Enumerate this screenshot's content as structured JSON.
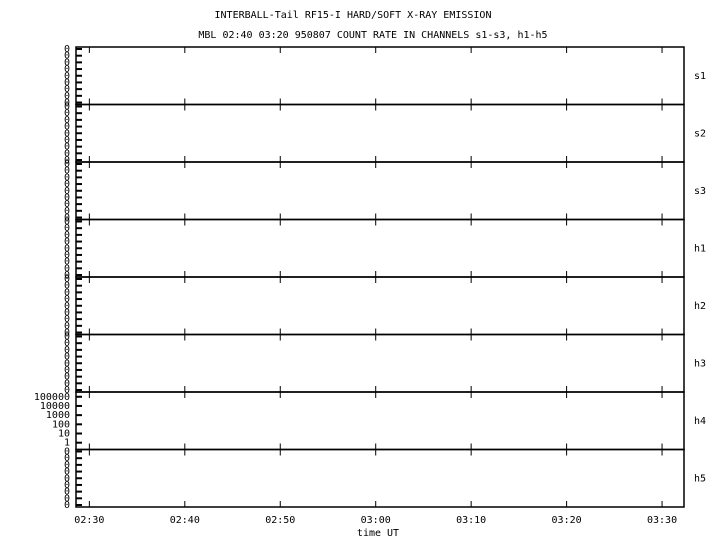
{
  "chart_data": [
    {
      "type": "line",
      "title": "INTERBALL-Tail RF15-I HARD/SOFT X-RAY EMISSION",
      "subtitle": "MBL 02:40 03:20 950807  COUNT RATE IN CHANNELS s1-s3, h1-h5",
      "label": "s1",
      "xlim": [
        148.6,
        212.3
      ],
      "ylim": [
        0,
        0.8
      ],
      "yticks": [
        {
          "value": 0,
          "label": "0"
        },
        {
          "value": 0.1,
          "label": "0"
        },
        {
          "value": 0.2,
          "label": "0"
        },
        {
          "value": 0.3,
          "label": "0"
        },
        {
          "value": 0.4,
          "label": "0"
        },
        {
          "value": 0.5,
          "label": "0"
        },
        {
          "value": 0.6,
          "label": "0"
        },
        {
          "value": 0.7,
          "label": "0"
        },
        {
          "value": 0.8,
          "label": "0"
        }
      ]
    },
    {
      "type": "line",
      "label": "s2",
      "xlim": [
        148.6,
        212.3
      ],
      "ylim": [
        0,
        0.8
      ],
      "yticks": [
        {
          "value": 0,
          "label": "0"
        },
        {
          "value": 0.1,
          "label": "0"
        },
        {
          "value": 0.2,
          "label": "0"
        },
        {
          "value": 0.3,
          "label": "0"
        },
        {
          "value": 0.4,
          "label": "0"
        },
        {
          "value": 0.5,
          "label": "0"
        },
        {
          "value": 0.6,
          "label": "0"
        },
        {
          "value": 0.7,
          "label": "0"
        },
        {
          "value": 0.8,
          "label": "0"
        }
      ]
    },
    {
      "type": "line",
      "label": "s3",
      "xlim": [
        148.6,
        212.3
      ],
      "ylim": [
        0,
        0.8
      ],
      "yticks": [
        {
          "value": 0,
          "label": "0"
        },
        {
          "value": 0.1,
          "label": "0"
        },
        {
          "value": 0.2,
          "label": "0"
        },
        {
          "value": 0.3,
          "label": "0"
        },
        {
          "value": 0.4,
          "label": "0"
        },
        {
          "value": 0.5,
          "label": "0"
        },
        {
          "value": 0.6,
          "label": "0"
        },
        {
          "value": 0.7,
          "label": "0"
        },
        {
          "value": 0.8,
          "label": "0"
        }
      ]
    },
    {
      "type": "line",
      "label": "h1",
      "xlim": [
        148.6,
        212.3
      ],
      "ylim": [
        0,
        0.8
      ],
      "yticks": [
        {
          "value": 0,
          "label": "0"
        },
        {
          "value": 0.1,
          "label": "0"
        },
        {
          "value": 0.2,
          "label": "0"
        },
        {
          "value": 0.3,
          "label": "0"
        },
        {
          "value": 0.4,
          "label": "0"
        },
        {
          "value": 0.5,
          "label": "0"
        },
        {
          "value": 0.6,
          "label": "0"
        },
        {
          "value": 0.7,
          "label": "0"
        },
        {
          "value": 0.8,
          "label": "0"
        }
      ]
    },
    {
      "type": "line",
      "label": "h2",
      "xlim": [
        148.6,
        212.3
      ],
      "ylim": [
        0,
        0.8
      ],
      "yticks": [
        {
          "value": 0,
          "label": "0"
        },
        {
          "value": 0.1,
          "label": "0"
        },
        {
          "value": 0.2,
          "label": "0"
        },
        {
          "value": 0.3,
          "label": "0"
        },
        {
          "value": 0.4,
          "label": "0"
        },
        {
          "value": 0.5,
          "label": "0"
        },
        {
          "value": 0.6,
          "label": "0"
        },
        {
          "value": 0.7,
          "label": "0"
        },
        {
          "value": 0.8,
          "label": "0"
        }
      ]
    },
    {
      "type": "line",
      "label": "h3",
      "xlim": [
        148.6,
        212.3
      ],
      "ylim": [
        0,
        0.8
      ],
      "yticks": [
        {
          "value": 0,
          "label": "0"
        },
        {
          "value": 0.1,
          "label": "0"
        },
        {
          "value": 0.2,
          "label": "0"
        },
        {
          "value": 0.3,
          "label": "0"
        },
        {
          "value": 0.4,
          "label": "0"
        },
        {
          "value": 0.5,
          "label": "0"
        },
        {
          "value": 0.6,
          "label": "0"
        },
        {
          "value": 0.7,
          "label": "0"
        },
        {
          "value": 0.8,
          "label": "0"
        }
      ]
    },
    {
      "type": "line",
      "label": "h4",
      "log": true,
      "xlim": [
        148.6,
        212.3
      ],
      "ylim": [
        0.3,
        200000
      ],
      "yticks": [
        1,
        10,
        100,
        1000,
        10000,
        100000
      ]
    },
    {
      "type": "line",
      "label": "h5",
      "xlabel": "time UT",
      "xlim": [
        148.6,
        212.3
      ],
      "ylim": [
        0,
        0.8
      ],
      "yticks": [
        {
          "value": 0,
          "label": "0"
        },
        {
          "value": 0.1,
          "label": "0"
        },
        {
          "value": 0.2,
          "label": "0"
        },
        {
          "value": 0.3,
          "label": "0"
        },
        {
          "value": 0.4,
          "label": "0"
        },
        {
          "value": 0.5,
          "label": "0"
        },
        {
          "value": 0.6,
          "label": "0"
        },
        {
          "value": 0.7,
          "label": "0"
        },
        {
          "value": 0.8,
          "label": "0"
        }
      ],
      "xticks": [
        {
          "value": 150,
          "label": "02:30"
        },
        {
          "value": 160,
          "label": "02:40"
        },
        {
          "value": 170,
          "label": "02:50"
        },
        {
          "value": 180,
          "label": "03:00"
        },
        {
          "value": 190,
          "label": "03:10"
        },
        {
          "value": 200,
          "label": "03:20"
        },
        {
          "value": 210,
          "label": "03:30"
        }
      ]
    }
  ]
}
